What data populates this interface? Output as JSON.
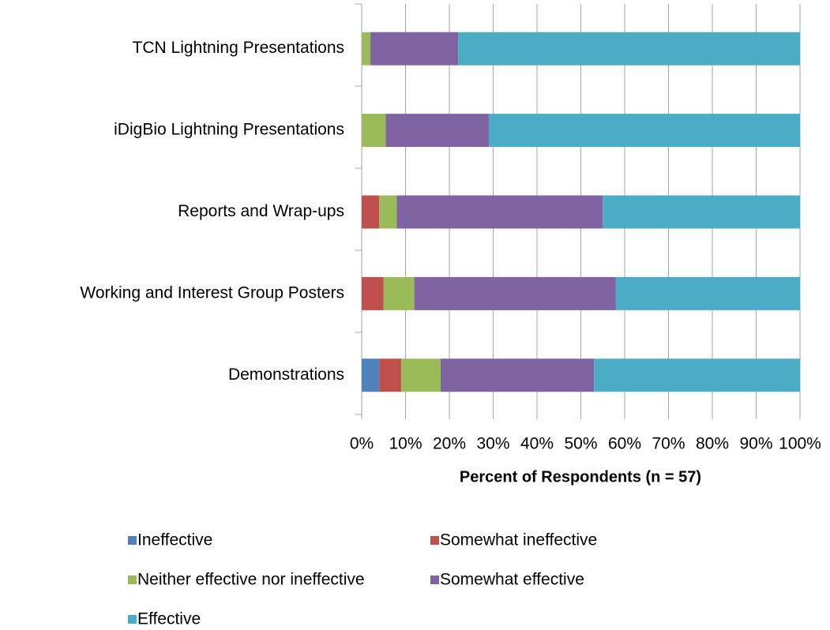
{
  "chart_data": {
    "type": "stacked_barh",
    "xlabel": "Percent of Respondents (n = 57)",
    "categories": [
      "TCN Lightning Presentations",
      "iDigBio Lightning Presentations",
      "Reports and Wrap-ups",
      "Working and Interest Group Posters",
      "Demonstrations"
    ],
    "series": [
      {
        "name": "Ineffective",
        "color": "#4f81bd",
        "values": [
          0,
          0,
          0,
          0,
          4
        ]
      },
      {
        "name": "Somewhat ineffective",
        "color": "#c0504d",
        "values": [
          0,
          0,
          4,
          5,
          5
        ]
      },
      {
        "name": "Neither effective nor ineffective",
        "color": "#9bbb59",
        "values": [
          2,
          5.5,
          4,
          7,
          9
        ]
      },
      {
        "name": "Somewhat effective",
        "color": "#8064a2",
        "values": [
          20,
          23.5,
          47,
          46,
          35
        ]
      },
      {
        "name": "Effective",
        "color": "#4bacc6",
        "values": [
          78,
          71,
          45,
          42,
          47
        ]
      }
    ],
    "xlim": [
      0,
      100
    ],
    "xticks": [
      {
        "value": 0,
        "label": "0%"
      },
      {
        "value": 10,
        "label": "10%"
      },
      {
        "value": 20,
        "label": "20%"
      },
      {
        "value": 30,
        "label": "30%"
      },
      {
        "value": 40,
        "label": "40%"
      },
      {
        "value": 50,
        "label": "50%"
      },
      {
        "value": 60,
        "label": "60%"
      },
      {
        "value": 70,
        "label": "70%"
      },
      {
        "value": 80,
        "label": "80%"
      },
      {
        "value": 90,
        "label": "90%"
      },
      {
        "value": 100,
        "label": "100%"
      }
    ],
    "grid": true
  }
}
